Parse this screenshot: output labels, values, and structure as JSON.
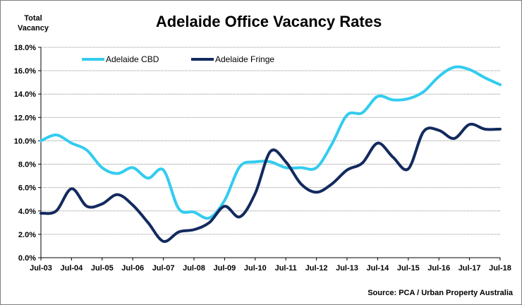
{
  "chart_data": {
    "type": "line",
    "title": "Adelaide Office Vacancy Rates",
    "ylabel": "Total\nVacancy",
    "source": "Source: PCA / Urban Property Australia",
    "ylim": [
      0,
      18
    ],
    "yticks": [
      "0.0%",
      "2.0%",
      "4.0%",
      "6.0%",
      "8.0%",
      "10.0%",
      "12.0%",
      "14.0%",
      "16.0%",
      "18.0%"
    ],
    "xticks": [
      "Jul-03",
      "Jul-04",
      "Jul-05",
      "Jul-06",
      "Jul-07",
      "Jul-08",
      "Jul-09",
      "Jul-10",
      "Jul-11",
      "Jul-12",
      "Jul-13",
      "Jul-14",
      "Jul-15",
      "Jul-16",
      "Jul-17",
      "Jul-18"
    ],
    "grid": "horizontal",
    "legend_position": "top-left",
    "series": [
      {
        "name": "Adelaide CBD",
        "color": "#33ccef",
        "x": [
          2003.5,
          2004.0,
          2004.5,
          2005.0,
          2005.5,
          2006.0,
          2006.5,
          2007.0,
          2007.5,
          2008.0,
          2008.5,
          2009.0,
          2009.5,
          2010.0,
          2010.5,
          2011.0,
          2011.5,
          2012.0,
          2012.5,
          2013.0,
          2013.5,
          2014.0,
          2014.5,
          2015.0,
          2015.5,
          2016.0,
          2016.5,
          2017.0,
          2017.5,
          2018.0,
          2018.5
        ],
        "values": [
          10.0,
          10.5,
          9.8,
          9.2,
          7.7,
          7.2,
          7.7,
          6.8,
          7.5,
          4.2,
          3.9,
          3.4,
          4.9,
          7.8,
          8.2,
          8.2,
          7.7,
          7.7,
          7.7,
          9.7,
          12.2,
          12.4,
          13.8,
          13.5,
          13.6,
          14.2,
          15.5,
          16.3,
          16.1,
          15.4,
          14.8
        ]
      },
      {
        "name": "Adelaide Fringe",
        "color": "#132a5e",
        "x": [
          2003.5,
          2004.0,
          2004.5,
          2005.0,
          2005.5,
          2006.0,
          2006.5,
          2007.0,
          2007.5,
          2008.0,
          2008.5,
          2009.0,
          2009.5,
          2010.0,
          2010.5,
          2011.0,
          2011.5,
          2012.0,
          2012.5,
          2013.0,
          2013.5,
          2014.0,
          2014.5,
          2015.0,
          2015.5,
          2016.0,
          2016.5,
          2017.0,
          2017.5,
          2018.0,
          2018.5
        ],
        "values": [
          3.8,
          4.0,
          5.9,
          4.4,
          4.6,
          5.4,
          4.5,
          3.0,
          1.4,
          2.2,
          2.4,
          3.0,
          4.4,
          3.5,
          5.5,
          9.1,
          8.2,
          6.3,
          5.6,
          6.3,
          7.5,
          8.1,
          9.8,
          8.6,
          7.6,
          10.8,
          10.9,
          10.2,
          11.4,
          11.0,
          11.0
        ]
      }
    ]
  }
}
